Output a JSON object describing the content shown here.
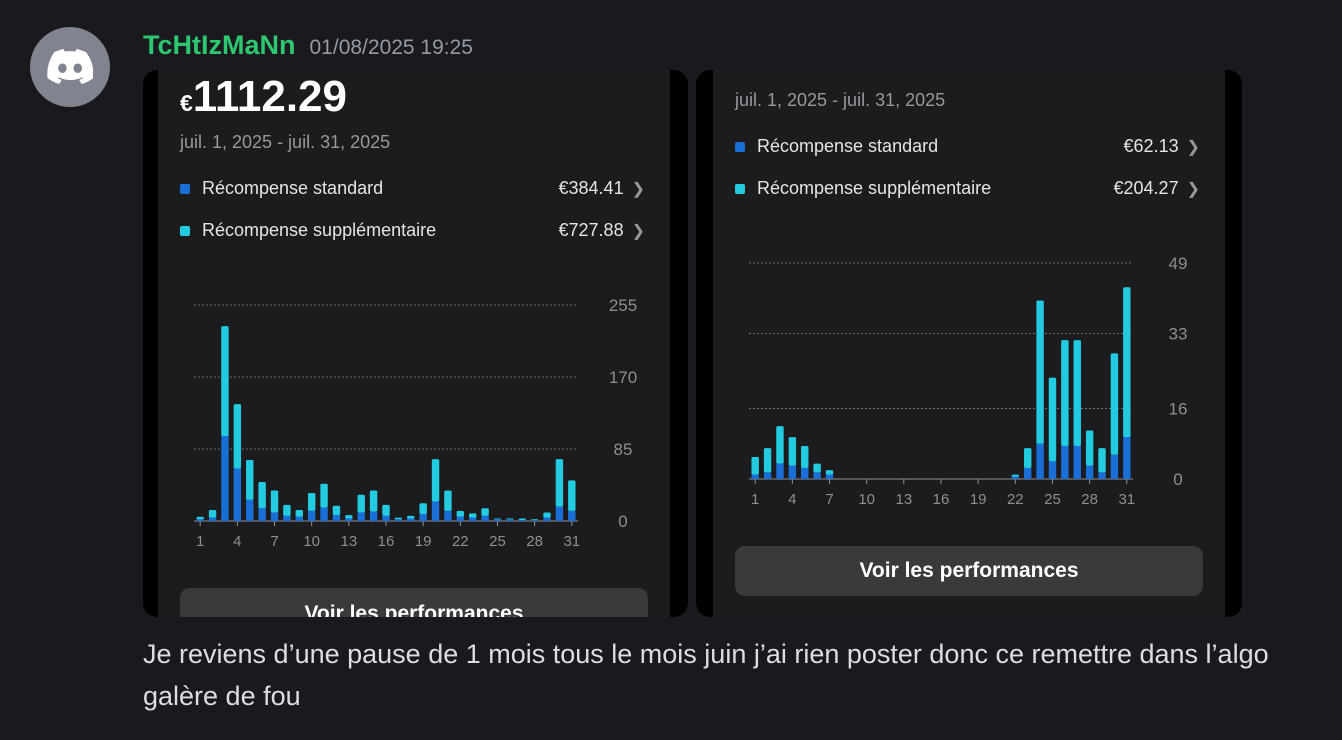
{
  "author": {
    "username": "TcHtIzMaNn",
    "timestamp": "01/08/2025 19:25",
    "avatar_icon": "discord-logo-icon"
  },
  "message": {
    "text": "Je reviens d’une pause de 1 mois tous le mois juin j’ai rien poster donc ce remettre dans l’algo galère de fou"
  },
  "colors": {
    "standard": "#1a6fd6",
    "supplementaire": "#22cbe0"
  },
  "card1": {
    "currency": "€",
    "total": "1112.29",
    "date_range": "juil. 1, 2025 - juil. 31, 2025",
    "legend": [
      {
        "label": "Récompense standard",
        "value": "€384.41"
      },
      {
        "label": "Récompense supplémentaire",
        "value": "€727.88"
      }
    ],
    "button": "Voir les performances"
  },
  "card2": {
    "date_range": "juil. 1, 2025 - juil. 31, 2025",
    "legend": [
      {
        "label": "Récompense standard",
        "value": "€62.13"
      },
      {
        "label": "Récompense supplémentaire",
        "value": "€204.27"
      }
    ],
    "button": "Voir les performances"
  },
  "chart_data": [
    {
      "type": "bar",
      "stacked": true,
      "x": [
        1,
        2,
        3,
        4,
        5,
        6,
        7,
        8,
        9,
        10,
        11,
        12,
        13,
        14,
        15,
        16,
        17,
        18,
        19,
        20,
        21,
        22,
        23,
        24,
        25,
        26,
        27,
        28,
        29,
        30,
        31
      ],
      "x_ticks": [
        "1",
        "4",
        "7",
        "10",
        "13",
        "16",
        "19",
        "22",
        "25",
        "28",
        "31"
      ],
      "y_ticks": [
        "255",
        "170",
        "85",
        "0"
      ],
      "ylim": [
        0,
        255
      ],
      "series": [
        {
          "name": "Récompense standard",
          "values": [
            2,
            4,
            100,
            62,
            25,
            15,
            10,
            6,
            5,
            12,
            16,
            7,
            3,
            10,
            11,
            6,
            2,
            3,
            8,
            23,
            12,
            5,
            4,
            6,
            2,
            2,
            1,
            1,
            4,
            17,
            12
          ]
        },
        {
          "name": "Récompense supplémentaire",
          "values": [
            3,
            9,
            130,
            76,
            47,
            31,
            26,
            13,
            8,
            21,
            28,
            11,
            4,
            21,
            25,
            13,
            2,
            3,
            13,
            50,
            24,
            7,
            5,
            9,
            1,
            1,
            2,
            1,
            6,
            56,
            36
          ]
        }
      ],
      "grid": true
    },
    {
      "type": "bar",
      "stacked": true,
      "x": [
        1,
        2,
        3,
        4,
        5,
        6,
        7,
        8,
        9,
        10,
        11,
        12,
        13,
        14,
        15,
        16,
        17,
        18,
        19,
        20,
        21,
        22,
        23,
        24,
        25,
        26,
        27,
        28,
        29,
        30,
        31
      ],
      "x_ticks": [
        "1",
        "4",
        "7",
        "10",
        "13",
        "16",
        "19",
        "22",
        "25",
        "28",
        "31"
      ],
      "y_ticks": [
        "49",
        "33",
        "16",
        "0"
      ],
      "ylim": [
        0,
        49
      ],
      "series": [
        {
          "name": "Récompense standard",
          "values": [
            1,
            1.5,
            3.5,
            3,
            2.5,
            1.5,
            1,
            0,
            0,
            0,
            0,
            0,
            0,
            0,
            0,
            0,
            0,
            0,
            0,
            0,
            0,
            0.5,
            2.5,
            8,
            4,
            7.5,
            7.5,
            3,
            1.5,
            5.5,
            9.5
          ]
        },
        {
          "name": "Récompense supplémentaire",
          "values": [
            4,
            5.5,
            8.5,
            6.5,
            5,
            2,
            1,
            0,
            0,
            0,
            0,
            0,
            0,
            0,
            0,
            0,
            0,
            0,
            0,
            0,
            0,
            0.5,
            4.5,
            32.5,
            19,
            24,
            24,
            8,
            5.5,
            23,
            34
          ]
        }
      ],
      "grid": true
    }
  ]
}
